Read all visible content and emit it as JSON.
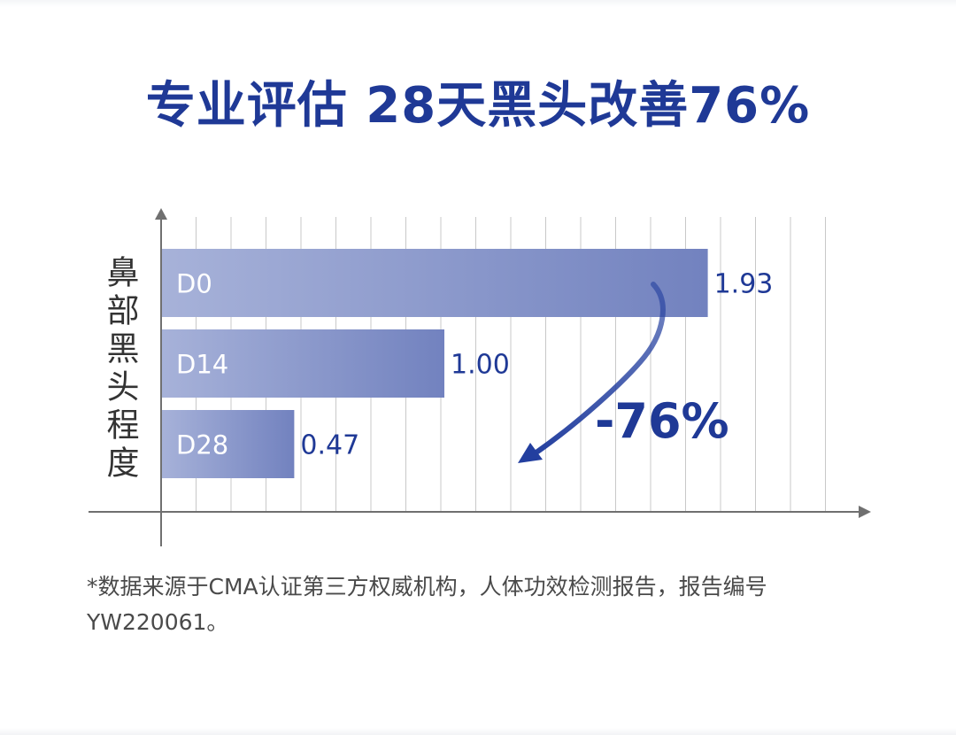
{
  "title": "专业评估 28天黑头改善76%",
  "chart_data": {
    "type": "bar",
    "orientation": "horizontal",
    "ylabel": "鼻部黑头程度",
    "xlabel": "",
    "categories": [
      "D0",
      "D14",
      "D28"
    ],
    "values": [
      1.93,
      1.0,
      0.47
    ],
    "value_labels": [
      "1.93",
      "1.00",
      "0.47"
    ],
    "xlim": [
      0,
      2.4
    ],
    "grid": true,
    "annotation": "-76%"
  },
  "footnote": "*数据来源于CMA认证第三方权威机构，人体功效检测报告，报告编号YW220061。",
  "colors": {
    "title": "#1f3996",
    "bar_start": "#a7b2d9",
    "bar_end": "#7282bf",
    "value_text": "#1f3996",
    "annotation": "#1f3996",
    "grid": "#c8c8c8",
    "axis": "#707070"
  }
}
